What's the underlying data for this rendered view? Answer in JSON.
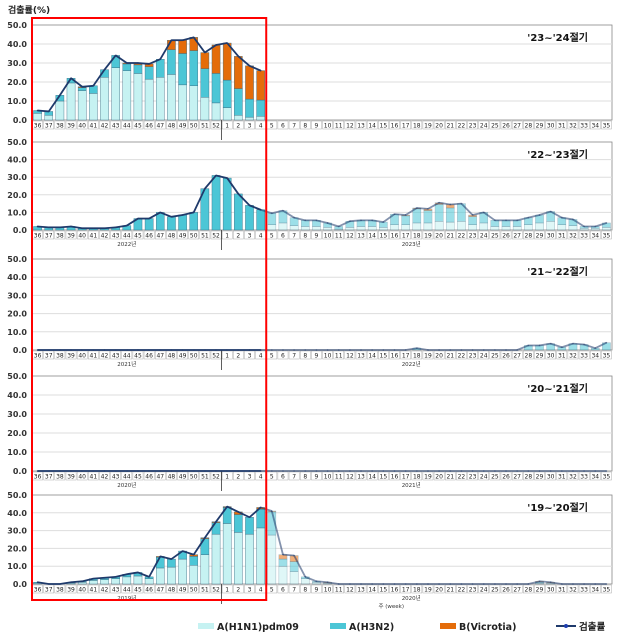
{
  "chart_data": {
    "type": "bar",
    "stacked": true,
    "ylabel": "검출률(%)",
    "xlabel": "주 (week)",
    "ylim": [
      0,
      50
    ],
    "yticks": [
      "0.0",
      "10.0",
      "20.0",
      "30.0",
      "40.0",
      "50.0"
    ],
    "weeks": [
      "36",
      "37",
      "38",
      "39",
      "40",
      "41",
      "42",
      "43",
      "44",
      "45",
      "46",
      "47",
      "48",
      "49",
      "50",
      "51",
      "52",
      "1",
      "2",
      "3",
      "4",
      "5",
      "6",
      "7",
      "8",
      "9",
      "10",
      "11",
      "12",
      "13",
      "14",
      "15",
      "16",
      "17",
      "18",
      "19",
      "20",
      "21",
      "22",
      "23",
      "24",
      "25",
      "26",
      "27",
      "28",
      "29",
      "30",
      "31",
      "32",
      "33",
      "34",
      "35"
    ],
    "highlight_weeks": [
      "36",
      "4"
    ],
    "legend": [
      {
        "name": "A(H1N1)pdm09",
        "color": "#c6f2f2"
      },
      {
        "name": "A(H3N2)",
        "color": "#4cc6d6"
      },
      {
        "name": "B(Vicrotia)",
        "color": "#e46c0a"
      },
      {
        "name": "검출률",
        "color": "#1f3a6b"
      }
    ],
    "panels": [
      {
        "season": "'23~'24절기",
        "years": [
          "",
          ""
        ],
        "h1n1": [
          3.5,
          2.5,
          10,
          19.5,
          15.5,
          14,
          22.5,
          27.5,
          26,
          24.5,
          21.5,
          22.5,
          24,
          18.5,
          18,
          12,
          9,
          6.5,
          2.5,
          1.5,
          2
        ],
        "h3n2": [
          1.5,
          2,
          3,
          2.5,
          1.5,
          4,
          4,
          6.5,
          3.5,
          4.5,
          6.5,
          9.5,
          13,
          16.5,
          18.5,
          15,
          15.5,
          14.5,
          14,
          9.5,
          8.5
        ],
        "b": [
          0,
          0,
          0,
          0,
          0.5,
          0,
          0,
          0,
          0.5,
          1,
          1.5,
          0,
          5,
          7,
          7,
          8.5,
          15,
          19.5,
          17,
          17.5,
          15.5
        ],
        "total": [
          5,
          4.5,
          13,
          22,
          17.5,
          18,
          26.5,
          34,
          30,
          30,
          29.5,
          32,
          42,
          42,
          43.5,
          35.5,
          39.5,
          40.5,
          33.5,
          28.5,
          26
        ]
      },
      {
        "season": "'22~'23절기",
        "years": [
          "2022년",
          "2023년"
        ],
        "h1n1": [
          0,
          0,
          0,
          0,
          0,
          0,
          0,
          0,
          0,
          0,
          0,
          0,
          0,
          0,
          0,
          0,
          0,
          0,
          0,
          0,
          0,
          3,
          4,
          2.5,
          2,
          2,
          1.5,
          0.5,
          1.5,
          2,
          2,
          1.5,
          3,
          3,
          4,
          4,
          5,
          4.5,
          5,
          3,
          4,
          2,
          2,
          2,
          3,
          4,
          5,
          3,
          2.5,
          1,
          1,
          1.5
        ],
        "h3n2": [
          2,
          1.5,
          1.5,
          2,
          1,
          1,
          1,
          1.5,
          2.5,
          6.5,
          6.5,
          10,
          7.5,
          8.5,
          10,
          23.5,
          31,
          29.5,
          20.5,
          14,
          11.5,
          6.5,
          7,
          4.5,
          3.5,
          3.5,
          2.5,
          1.5,
          3.5,
          3.5,
          3.5,
          3,
          6,
          5,
          8,
          7,
          9.5,
          8,
          10,
          4.5,
          6,
          3.5,
          3.5,
          3.5,
          4,
          4.5,
          5.5,
          4,
          3.5,
          1,
          1,
          2.5
        ],
        "b": [
          0,
          0,
          0,
          0,
          0,
          0,
          0,
          0,
          0,
          0,
          0,
          0,
          0,
          0,
          0,
          0,
          0,
          0,
          0,
          0,
          0,
          0,
          0,
          0,
          0,
          0,
          0,
          0,
          0,
          0,
          0,
          0,
          0,
          0.5,
          0.5,
          1,
          1,
          2,
          0,
          1,
          0,
          0,
          0,
          0,
          0,
          0,
          0,
          0,
          0,
          0,
          0,
          0
        ],
        "total": [
          2,
          1.5,
          1.5,
          2,
          1,
          1,
          1,
          1.5,
          2.5,
          6.5,
          6.5,
          10,
          7.5,
          8.5,
          10,
          23.5,
          31,
          29.5,
          20.5,
          14,
          11.5,
          9.5,
          11,
          7,
          5.5,
          5.5,
          4,
          2,
          5,
          5.5,
          5.5,
          4.5,
          9,
          8.5,
          12.5,
          12,
          15.5,
          14.5,
          15,
          8.5,
          10,
          5.5,
          5.5,
          5.5,
          7,
          8.5,
          10.5,
          7,
          6,
          2,
          2,
          4
        ]
      },
      {
        "season": "'21~'22절기",
        "years": [
          "2021년",
          "2022년"
        ],
        "h1n1": [
          0,
          0,
          0,
          0,
          0,
          0,
          0,
          0,
          0,
          0,
          0,
          0,
          0,
          0,
          0,
          0,
          0,
          0,
          0,
          0,
          0,
          0,
          0,
          0,
          0,
          0,
          0,
          0,
          0,
          0,
          0,
          0,
          0,
          0,
          0,
          0,
          0,
          0,
          0,
          0,
          0,
          0,
          0,
          0,
          0,
          0,
          0,
          0,
          0,
          0,
          0,
          0
        ],
        "h3n2": [
          0,
          0,
          0,
          0,
          0,
          0,
          0,
          0,
          0,
          0,
          0,
          0,
          0,
          0,
          0,
          0,
          0,
          0,
          0,
          0,
          0,
          0,
          0,
          0,
          0,
          0,
          0,
          0,
          0,
          0,
          0,
          0,
          0,
          0,
          1,
          0,
          0,
          0,
          0,
          0,
          0,
          0,
          0,
          0,
          2.5,
          2.5,
          3.5,
          1.5,
          3.5,
          3,
          1,
          4
        ],
        "b": [
          0,
          0,
          0,
          0,
          0,
          0,
          0,
          0,
          0,
          0,
          0,
          0,
          0,
          0,
          0,
          0,
          0,
          0,
          0,
          0,
          0,
          0,
          0,
          0,
          0,
          0,
          0,
          0,
          0,
          0,
          0,
          0,
          0,
          0,
          0,
          0,
          0,
          0,
          0,
          0,
          0,
          0,
          0,
          0,
          0,
          0,
          0,
          0,
          0,
          0,
          0,
          0
        ],
        "total": [
          0,
          0,
          0,
          0,
          0,
          0,
          0,
          0,
          0,
          0,
          0,
          0,
          0,
          0,
          0,
          0,
          0,
          0,
          0,
          0,
          0,
          0,
          0,
          0,
          0,
          0,
          0,
          0,
          0,
          0,
          0,
          0,
          0,
          0,
          1,
          0,
          0,
          0,
          0,
          0,
          0,
          0,
          0,
          0,
          2.5,
          2.5,
          3.5,
          1.5,
          3.5,
          3,
          1,
          4
        ]
      },
      {
        "season": "'20~'21절기",
        "years": [
          "2020년",
          "2021년"
        ],
        "h1n1": [
          0,
          0,
          0,
          0,
          0,
          0,
          0,
          0,
          0,
          0,
          0,
          0,
          0,
          0,
          0,
          0,
          0,
          0,
          0,
          0,
          0,
          0,
          0,
          0,
          0,
          0,
          0,
          0,
          0,
          0,
          0,
          0,
          0,
          0,
          0,
          0,
          0,
          0,
          0,
          0,
          0,
          0,
          0,
          0,
          0,
          0,
          0,
          0,
          0,
          0,
          0,
          0
        ],
        "h3n2": [
          0,
          0,
          0,
          0,
          0,
          0,
          0,
          0,
          0,
          0,
          0,
          0,
          0,
          0,
          0,
          0,
          0,
          0,
          0,
          0,
          0,
          0,
          0,
          0,
          0,
          0,
          0,
          0,
          0,
          0,
          0,
          0,
          0,
          0,
          0,
          0,
          0,
          0,
          0,
          0,
          0,
          0,
          0,
          0,
          0,
          0,
          0,
          0,
          0,
          0,
          0,
          0
        ],
        "b": [
          0,
          0,
          0,
          0,
          0,
          0,
          0,
          0,
          0,
          0,
          0,
          0,
          0,
          0,
          0,
          0,
          0,
          0,
          0,
          0,
          0,
          0,
          0,
          0,
          0,
          0,
          0,
          0,
          0,
          0,
          0,
          0,
          0,
          0,
          0,
          0,
          0,
          0,
          0,
          0,
          0,
          0,
          0,
          0,
          0,
          0,
          0,
          0,
          0,
          0,
          0,
          0
        ],
        "total": [
          0,
          0,
          0,
          0,
          0,
          0,
          0,
          0,
          0,
          0,
          0,
          0,
          0,
          0,
          0,
          0,
          0,
          0,
          0,
          0,
          0,
          0,
          0,
          0,
          0,
          0,
          0,
          0,
          0,
          0,
          0,
          0,
          0,
          0,
          0,
          0,
          0,
          0,
          0,
          0,
          0,
          0,
          0,
          0,
          0,
          0,
          0,
          0,
          0,
          0,
          0,
          0
        ]
      },
      {
        "season": "'19~'20절기",
        "years": [
          "2019년",
          "2020년"
        ],
        "h1n1": [
          0.5,
          0,
          0,
          0.5,
          1,
          2,
          2.5,
          3,
          4,
          4.5,
          3,
          9,
          9.5,
          14,
          10.5,
          16.5,
          28,
          34,
          29,
          28,
          31.5,
          27.5,
          10,
          7,
          3,
          1,
          0.5,
          0,
          0,
          0,
          0,
          0,
          0,
          0,
          0,
          0,
          0,
          0,
          0,
          0,
          0,
          0,
          0,
          0,
          0,
          0.5,
          0.5,
          0,
          0,
          0,
          0,
          0
        ],
        "h3n2": [
          0.5,
          0,
          0,
          0.5,
          0.5,
          1,
          1,
          1,
          1.5,
          2,
          1,
          6,
          4.5,
          4.5,
          5,
          9,
          6.5,
          9,
          10,
          9.5,
          10.5,
          13,
          4,
          5.5,
          1,
          0.5,
          0,
          0,
          0,
          0,
          0,
          0,
          0,
          0,
          0,
          0,
          0,
          0,
          0,
          0,
          0,
          0,
          0,
          0,
          0,
          0.5,
          0,
          0,
          0,
          0,
          0,
          0
        ],
        "b": [
          0,
          0,
          0,
          0,
          0,
          0,
          0,
          0,
          0,
          0,
          0,
          0.5,
          0,
          0,
          1,
          0.5,
          0.5,
          0.5,
          1.5,
          0,
          1,
          0.5,
          2.5,
          3.5,
          0,
          0,
          0.5,
          0,
          0,
          0,
          0,
          0,
          0,
          0,
          0,
          0,
          0,
          0,
          0,
          0,
          0,
          0,
          0,
          0,
          0,
          0.5,
          0.5,
          0,
          0,
          0,
          0,
          0
        ],
        "total": [
          1,
          0,
          0,
          1,
          1.5,
          3,
          3.5,
          4,
          5.5,
          6.5,
          4,
          15.5,
          14,
          18.5,
          16.5,
          26,
          35,
          43.5,
          40.5,
          37.5,
          43,
          41,
          16.5,
          16,
          4,
          1.5,
          1,
          0,
          0,
          0,
          0,
          0,
          0,
          0,
          0,
          0,
          0,
          0,
          0,
          0,
          0,
          0,
          0,
          0,
          0,
          1.5,
          1,
          0,
          0,
          0,
          0,
          0
        ]
      }
    ]
  }
}
